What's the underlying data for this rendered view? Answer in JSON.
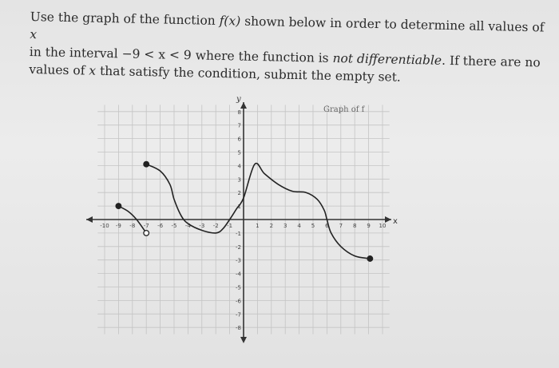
{
  "question": {
    "line1_a": "Use the graph of the function ",
    "fx": "f(x)",
    "line1_b": " shown below in order to determine all values of ",
    "var_x": "x",
    "line2_a": "in the interval ",
    "interval": "−9 < x < 9",
    "line2_b": " where the function is ",
    "emph": "not differentiable",
    "line2_c": ". If there are no",
    "line3_a": "values of ",
    "line3_b": " that satisfy the condition, submit the empty set."
  },
  "graph": {
    "title": "Graph of f",
    "x_axis_label": "x",
    "y_axis_label": "y",
    "x_range": [
      -10,
      10
    ],
    "y_range": [
      -8,
      8
    ],
    "grid": true,
    "pieces": [
      {
        "points": [
          [
            -9,
            1
          ],
          [
            -8.3,
            0.6
          ],
          [
            -7.7,
            0
          ],
          [
            -7,
            -1
          ]
        ],
        "start": "closed",
        "end": "open"
      },
      {
        "points": [
          [
            -7,
            4.1
          ],
          [
            -6,
            3.6
          ],
          [
            -5.3,
            2.6
          ],
          [
            -5,
            1.5
          ],
          [
            -4.5,
            0.3
          ],
          [
            -4,
            -0.3
          ],
          [
            -3,
            -0.8
          ],
          [
            -2,
            -1
          ],
          [
            -1.5,
            -0.7
          ],
          [
            -1,
            0
          ],
          [
            -0.5,
            0.8
          ],
          [
            0,
            1.6
          ],
          [
            0.8,
            4.1
          ],
          [
            1.5,
            3.4
          ],
          [
            2.5,
            2.6
          ],
          [
            3.5,
            2.1
          ],
          [
            4.5,
            2
          ],
          [
            5.3,
            1.5
          ],
          [
            5.8,
            0.7
          ],
          [
            6,
            0
          ],
          [
            6.3,
            -1
          ],
          [
            7,
            -2
          ],
          [
            8,
            -2.7
          ],
          [
            9.1,
            -2.9
          ]
        ],
        "start": "closed",
        "end": "closed"
      }
    ],
    "line_color": "#222222"
  }
}
